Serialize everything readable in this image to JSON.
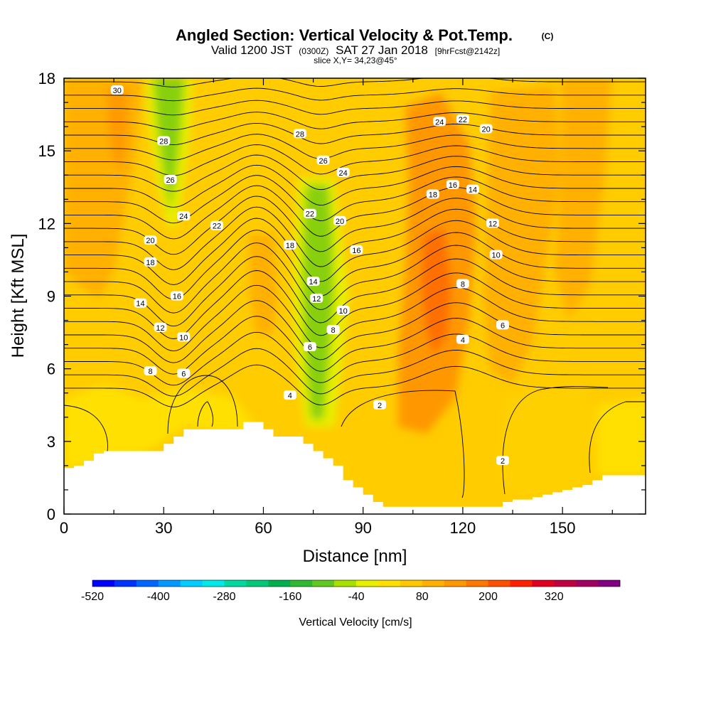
{
  "header": {
    "title_main": "Angled Section: Vertical Velocity & Pot.Temp.",
    "title_unit": "(C)",
    "valid_prefix": "Valid 1200 JST",
    "valid_utc": "(0300Z)",
    "valid_date": "SAT 27 Jan 2018",
    "valid_fcst": "[9hrFcst@2142z]",
    "slice_text": "slice X,Y= 34,23@45°"
  },
  "colors": {
    "terrain": "#ffffff",
    "contour": "#000000",
    "colorbar": [
      "#0000ff",
      "#0033ff",
      "#0066ff",
      "#0099ff",
      "#00ccff",
      "#00e8e8",
      "#00d8a0",
      "#00c878",
      "#00b050",
      "#30b830",
      "#60c820",
      "#a8e000",
      "#e8f000",
      "#ffe000",
      "#ffc800",
      "#ffb000",
      "#ff9800",
      "#ff7800",
      "#ff5000",
      "#ff2000",
      "#e00020",
      "#c00040",
      "#a00060",
      "#800080"
    ]
  },
  "chart_data": {
    "type": "heatmap",
    "xlabel": "Distance [nm]",
    "ylabel": "Height [Kft MSL]",
    "xlim": [
      0,
      175
    ],
    "ylim": [
      0,
      18
    ],
    "x_ticks": [
      0,
      30,
      60,
      90,
      120,
      150
    ],
    "y_ticks": [
      0,
      3,
      6,
      9,
      12,
      15,
      18
    ],
    "colorbar": {
      "label": "Vertical Velocity [cm/s]",
      "min": -520,
      "max": 440,
      "step": 40,
      "tick_labels": [
        "-520",
        "-400",
        "-280",
        "-160",
        "-40",
        "80",
        "200",
        "320"
      ]
    },
    "vertical_velocity_features": [
      {
        "kind": "updraft",
        "x": 15,
        "y_range": [
          9,
          18
        ],
        "peak_cm_s": 80
      },
      {
        "kind": "downdraft",
        "x": 33,
        "y_range": [
          12,
          18
        ],
        "peak_cm_s": -120
      },
      {
        "kind": "updraft",
        "x": 60,
        "y_range": [
          5,
          12
        ],
        "peak_cm_s": 40
      },
      {
        "kind": "downdraft",
        "x": 77,
        "y_range": [
          4,
          13
        ],
        "peak_cm_s": -120
      },
      {
        "kind": "updraft",
        "x": 112,
        "y_range": [
          4,
          13
        ],
        "peak_cm_s": 160
      },
      {
        "kind": "updraft",
        "x": 143,
        "y_range": [
          5,
          12
        ],
        "peak_cm_s": 80
      }
    ],
    "terrain_heights_kft": {
      "x": [
        0,
        3,
        6,
        9,
        12,
        15,
        18,
        21,
        24,
        27,
        30,
        33,
        36,
        39,
        42,
        45,
        48,
        51,
        54,
        57,
        60,
        63,
        66,
        69,
        72,
        75,
        78,
        81,
        84,
        87,
        90,
        93,
        96,
        99,
        102,
        105,
        108,
        111,
        114,
        117,
        120,
        123,
        126,
        129,
        132,
        135,
        138,
        141,
        144,
        147,
        150,
        153,
        156,
        159,
        162,
        165,
        168,
        171,
        175
      ],
      "h": [
        1.9,
        2.0,
        2.2,
        2.5,
        2.6,
        2.6,
        2.6,
        2.6,
        2.6,
        2.6,
        2.9,
        3.2,
        3.5,
        3.5,
        3.5,
        3.5,
        3.5,
        3.5,
        3.8,
        3.8,
        3.5,
        3.2,
        3.2,
        3.2,
        2.9,
        2.6,
        2.3,
        2.0,
        1.4,
        1.1,
        0.8,
        0.5,
        0.3,
        0.3,
        0.3,
        0.3,
        0.3,
        0.3,
        0.3,
        0.3,
        0.3,
        0.3,
        0.3,
        0.3,
        0.5,
        0.6,
        0.6,
        0.7,
        0.8,
        0.9,
        1.0,
        1.1,
        1.2,
        1.4,
        1.6,
        1.6,
        1.6,
        1.6,
        1.6
      ]
    },
    "pot_temp_contours_c": [
      2,
      4,
      6,
      8,
      10,
      12,
      14,
      16,
      18,
      20,
      22,
      24,
      26,
      28,
      30
    ],
    "contour_labels": [
      {
        "v": "30",
        "x": 16,
        "y": 17.5
      },
      {
        "v": "28",
        "x": 30,
        "y": 15.4
      },
      {
        "v": "26",
        "x": 32,
        "y": 13.8
      },
      {
        "v": "24",
        "x": 36,
        "y": 12.3
      },
      {
        "v": "22",
        "x": 46,
        "y": 11.9
      },
      {
        "v": "20",
        "x": 26,
        "y": 11.3
      },
      {
        "v": "18",
        "x": 26,
        "y": 10.4
      },
      {
        "v": "16",
        "x": 34,
        "y": 9.0
      },
      {
        "v": "14",
        "x": 23,
        "y": 8.7
      },
      {
        "v": "12",
        "x": 29,
        "y": 7.7
      },
      {
        "v": "10",
        "x": 36,
        "y": 7.3
      },
      {
        "v": "8",
        "x": 26,
        "y": 5.9
      },
      {
        "v": "6",
        "x": 36,
        "y": 5.8
      },
      {
        "v": "28",
        "x": 71,
        "y": 15.7
      },
      {
        "v": "26",
        "x": 78,
        "y": 14.6
      },
      {
        "v": "24",
        "x": 84,
        "y": 14.1
      },
      {
        "v": "22",
        "x": 74,
        "y": 12.4
      },
      {
        "v": "20",
        "x": 83,
        "y": 12.1
      },
      {
        "v": "18",
        "x": 68,
        "y": 11.1
      },
      {
        "v": "16",
        "x": 88,
        "y": 10.9
      },
      {
        "v": "14",
        "x": 75,
        "y": 9.6
      },
      {
        "v": "12",
        "x": 76,
        "y": 8.9
      },
      {
        "v": "10",
        "x": 84,
        "y": 8.4
      },
      {
        "v": "8",
        "x": 81,
        "y": 7.6
      },
      {
        "v": "6",
        "x": 74,
        "y": 6.9
      },
      {
        "v": "4",
        "x": 68,
        "y": 4.9
      },
      {
        "v": "2",
        "x": 95,
        "y": 4.5
      },
      {
        "v": "24",
        "x": 113,
        "y": 16.2
      },
      {
        "v": "22",
        "x": 120,
        "y": 16.3
      },
      {
        "v": "20",
        "x": 127,
        "y": 15.9
      },
      {
        "v": "18",
        "x": 111,
        "y": 13.2
      },
      {
        "v": "16",
        "x": 117,
        "y": 13.6
      },
      {
        "v": "14",
        "x": 123,
        "y": 13.4
      },
      {
        "v": "12",
        "x": 129,
        "y": 12.0
      },
      {
        "v": "10",
        "x": 130,
        "y": 10.7
      },
      {
        "v": "8",
        "x": 120,
        "y": 9.5
      },
      {
        "v": "6",
        "x": 132,
        "y": 7.8
      },
      {
        "v": "4",
        "x": 120,
        "y": 7.2
      },
      {
        "v": "2",
        "x": 132,
        "y": 2.2
      }
    ]
  }
}
